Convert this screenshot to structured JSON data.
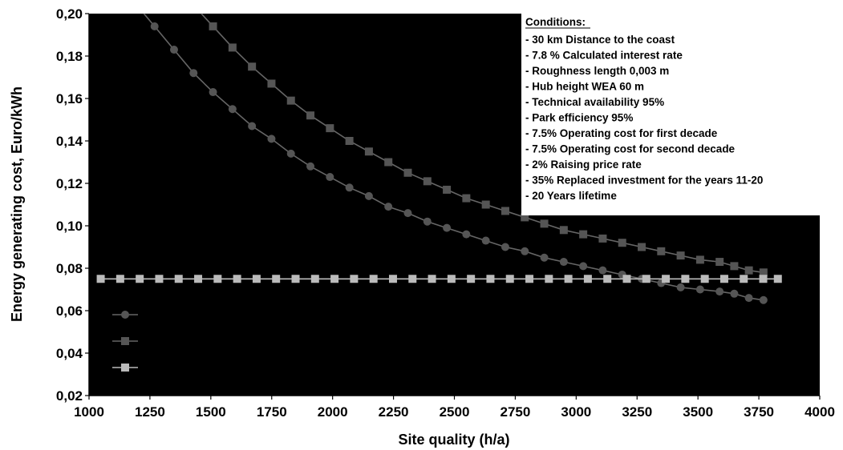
{
  "chart_data": {
    "type": "line",
    "title": "",
    "xlabel": "Site quality (h/a)",
    "ylabel": "Energy generating cost, Euro/kWh",
    "xlim": [
      1000,
      4000
    ],
    "ylim": [
      0.02,
      0.2
    ],
    "x_ticks": [
      "1000",
      "1250",
      "1500",
      "1750",
      "2000",
      "2250",
      "2500",
      "2750",
      "3000",
      "3250",
      "3500",
      "3750",
      "4000"
    ],
    "y_ticks": [
      "0,02",
      "0,04",
      "0,06",
      "0,08",
      "0,10",
      "0,12",
      "0,14",
      "0,16",
      "0,18",
      "0,20"
    ],
    "plot_background": "#000000",
    "grid": false,
    "legend_position": "bottom-left",
    "series": [
      {
        "marker": "circle",
        "color": "#555555",
        "x": [
          1269,
          1349,
          1429,
          1509,
          1589,
          1669,
          1749,
          1829,
          1909,
          1989,
          2069,
          2149,
          2229,
          2309,
          2389,
          2469,
          2549,
          2629,
          2709,
          2789,
          2869,
          2949,
          3029,
          3109,
          3189,
          3269,
          3349,
          3429,
          3509,
          3589,
          3649,
          3709,
          3769
        ],
        "y": [
          0.194,
          0.183,
          0.172,
          0.163,
          0.155,
          0.147,
          0.141,
          0.134,
          0.128,
          0.123,
          0.118,
          0.114,
          0.109,
          0.106,
          0.102,
          0.099,
          0.096,
          0.093,
          0.09,
          0.088,
          0.085,
          0.083,
          0.081,
          0.079,
          0.077,
          0.075,
          0.073,
          0.071,
          0.07,
          0.069,
          0.068,
          0.066,
          0.065
        ]
      },
      {
        "marker": "square",
        "color": "#555555",
        "x": [
          1509,
          1589,
          1669,
          1749,
          1829,
          1909,
          1989,
          2069,
          2149,
          2229,
          2309,
          2389,
          2469,
          2549,
          2629,
          2709,
          2789,
          2869,
          2949,
          3029,
          3109,
          3189,
          3269,
          3349,
          3429,
          3509,
          3589,
          3649,
          3709,
          3769
        ],
        "y": [
          0.194,
          0.184,
          0.175,
          0.167,
          0.159,
          0.152,
          0.146,
          0.14,
          0.135,
          0.13,
          0.125,
          0.121,
          0.117,
          0.113,
          0.11,
          0.107,
          0.104,
          0.101,
          0.098,
          0.096,
          0.094,
          0.092,
          0.09,
          0.088,
          0.086,
          0.084,
          0.083,
          0.081,
          0.079,
          0.078
        ]
      },
      {
        "marker": "square",
        "color": "#bbbbbb",
        "x": [
          1048,
          1128,
          1208,
          1288,
          1368,
          1448,
          1528,
          1608,
          1688,
          1768,
          1848,
          1928,
          2008,
          2088,
          2168,
          2248,
          2328,
          2408,
          2488,
          2568,
          2648,
          2728,
          2808,
          2888,
          2968,
          3048,
          3128,
          3208,
          3288,
          3368,
          3448,
          3528,
          3608,
          3688,
          3768,
          3828
        ],
        "y": [
          0.075,
          0.075,
          0.075,
          0.075,
          0.075,
          0.075,
          0.075,
          0.075,
          0.075,
          0.075,
          0.075,
          0.075,
          0.075,
          0.075,
          0.075,
          0.075,
          0.075,
          0.075,
          0.075,
          0.075,
          0.075,
          0.075,
          0.075,
          0.075,
          0.075,
          0.075,
          0.075,
          0.075,
          0.075,
          0.075,
          0.075,
          0.075,
          0.075,
          0.075,
          0.075,
          0.075
        ]
      }
    ],
    "annotations": {
      "conditions_title": "Conditions:",
      "conditions": [
        "- 30 km Distance to the coast",
        "- 7.8 % Calculated interest rate",
        "- Roughness length 0,003 m",
        "- Hub height WEA 60 m",
        "- Technical availability 95%",
        "- Park efficiency 95%",
        "- 7.5% Operating cost for first decade",
        "- 7.5% Operating cost for second decade",
        "- 2% Raising price rate",
        "- 35% Replaced investment for the years 11-20",
        "- 20 Years lifetime"
      ]
    }
  }
}
